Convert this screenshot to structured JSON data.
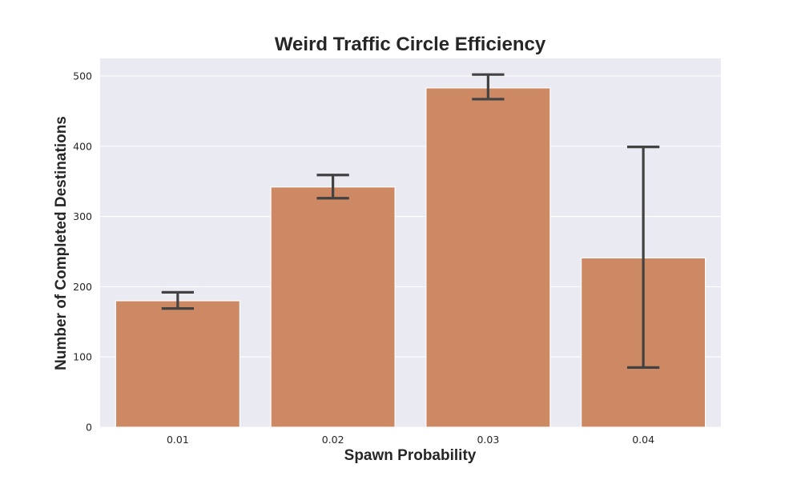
{
  "chart_data": {
    "type": "bar",
    "title": "Weird Traffic Circle Efficiency",
    "xlabel": "Spawn Probability",
    "ylabel": "Number of Completed Destinations",
    "categories": [
      "0.01",
      "0.02",
      "0.03",
      "0.04"
    ],
    "values": [
      180,
      342,
      483,
      241
    ],
    "error_bars": [
      {
        "low": 169,
        "high": 192
      },
      {
        "low": 326,
        "high": 359
      },
      {
        "low": 467,
        "high": 502
      },
      {
        "low": 85,
        "high": 399
      }
    ],
    "ylim": [
      0,
      525
    ],
    "yticks": [
      "0",
      "100",
      "200",
      "300",
      "400",
      "500"
    ],
    "grid": true,
    "bar_color": "#cc8963",
    "error_color": "#424242",
    "background_color": "#eaeaf2"
  }
}
